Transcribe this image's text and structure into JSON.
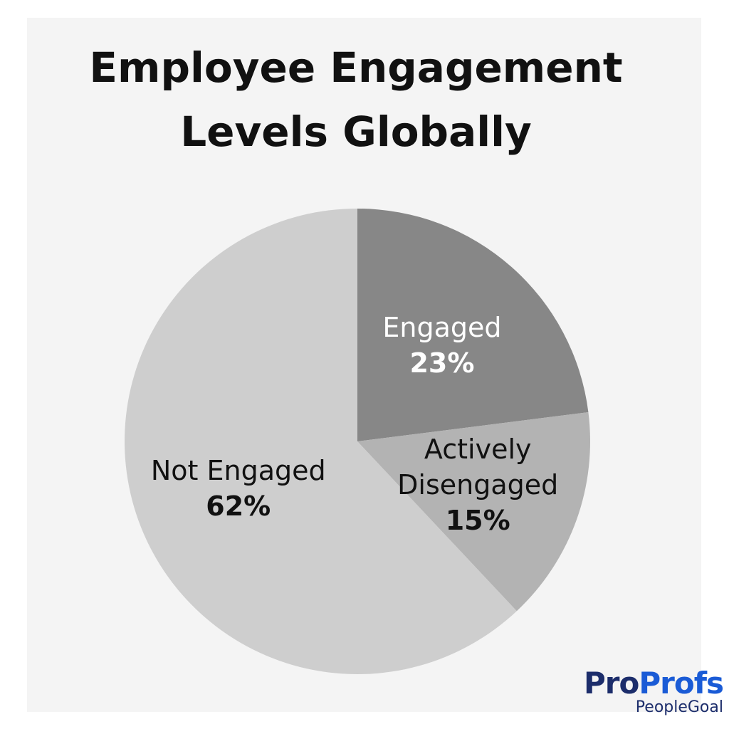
{
  "chart_data": {
    "type": "pie",
    "title": "Employee Engagement Levels Globally",
    "categories": [
      "Engaged",
      "Actively Disengaged",
      "Not Engaged"
    ],
    "values": [
      23,
      15,
      62
    ],
    "value_labels": [
      "23%",
      "15%",
      "62%"
    ],
    "colors": [
      "#878787",
      "#b3b3b3",
      "#cecece"
    ]
  },
  "logo": {
    "brand_first": "Pro",
    "brand_second": "Profs",
    "product": "PeopleGoal"
  }
}
